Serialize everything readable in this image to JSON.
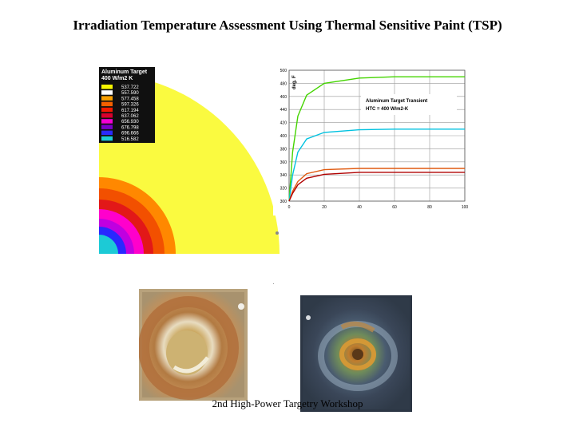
{
  "slide": {
    "title": "Irradiation Temperature Assessment Using Thermal Sensitive Paint (TSP)",
    "footer": "2nd High-Power Targetry Workshop"
  },
  "contour_plot": {
    "legend_title_line1": "Aluminum Target",
    "legend_title_line2": "400 W/m2 K",
    "legend_values": [
      "537.722",
      "557.590",
      "577.458",
      "597.326",
      "617.194",
      "637.062",
      "656.930",
      "676.798",
      "696.666",
      "516.582"
    ],
    "legend_colors": [
      "#f6f600",
      "#ffffff",
      "#f9a000",
      "#f56000",
      "#f21a00",
      "#d8002c",
      "#f400d4",
      "#7a00c8",
      "#2a2aff",
      "#1ccad6"
    ],
    "band_colors": [
      "#fafa40",
      "#ff8800",
      "#f25000",
      "#e21818",
      "#ff00cc",
      "#c000e0",
      "#2828ff",
      "#1ccad6"
    ]
  },
  "chart_data": {
    "type": "line",
    "title": "Aluminum Target Transient",
    "subtitle": "HTC = 400 W/m2-K",
    "ylabel": "deg. F",
    "x_ticks": [
      "0",
      "20",
      "40",
      "60",
      "80",
      "100"
    ],
    "y_ticks": [
      "300",
      "320",
      "340",
      "360",
      "380",
      "400",
      "420",
      "440",
      "460",
      "480",
      "500"
    ],
    "xlim": [
      0,
      100
    ],
    "ylim": [
      300,
      500
    ],
    "grid": true,
    "series": [
      {
        "color": "#44d400",
        "x": [
          0,
          2,
          5,
          10,
          20,
          40,
          60,
          80,
          100
        ],
        "values": [
          300,
          375,
          430,
          462,
          480,
          488,
          490,
          490,
          490
        ]
      },
      {
        "color": "#00c2e0",
        "x": [
          0,
          2,
          5,
          10,
          20,
          40,
          60,
          80,
          100
        ],
        "values": [
          300,
          340,
          375,
          395,
          405,
          409,
          410,
          410,
          410
        ]
      },
      {
        "color": "#e05a10",
        "x": [
          0,
          2,
          5,
          10,
          20,
          40,
          60,
          80,
          100
        ],
        "values": [
          300,
          315,
          330,
          342,
          348,
          350,
          350,
          350,
          350
        ]
      },
      {
        "color": "#b00000",
        "x": [
          0,
          2,
          5,
          10,
          20,
          40,
          60,
          80,
          100
        ],
        "values": [
          300,
          312,
          325,
          335,
          341,
          344,
          344,
          344,
          344
        ]
      }
    ]
  }
}
